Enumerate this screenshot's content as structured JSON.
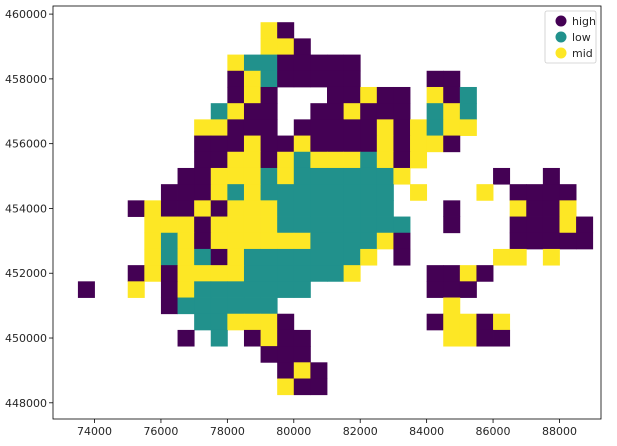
{
  "chart_data": {
    "type": "heatmap",
    "title": "",
    "xlabel": "",
    "ylabel": "",
    "xlim": [
      72750,
      89250
    ],
    "ylim": [
      447500,
      460250
    ],
    "xticks": [
      74000,
      76000,
      78000,
      80000,
      82000,
      84000,
      86000,
      88000
    ],
    "yticks": [
      448000,
      450000,
      452000,
      454000,
      456000,
      458000,
      460000
    ],
    "cell_size": 500,
    "grid": false,
    "legend_placement": "top-right",
    "categories": [
      {
        "key": "h",
        "name": "high",
        "color": "#440154"
      },
      {
        "key": "l",
        "name": "low",
        "color": "#21918c"
      },
      {
        "key": "m",
        "name": "mid",
        "color": "#fde725"
      }
    ],
    "rows": [
      {
        "y": 459500,
        "cells": [
          [
            79250,
            "m"
          ],
          [
            79750,
            "h"
          ]
        ]
      },
      {
        "y": 459000,
        "cells": [
          [
            79250,
            "m"
          ],
          [
            79750,
            "m"
          ],
          [
            80250,
            "h"
          ]
        ]
      },
      {
        "y": 458500,
        "cells": [
          [
            78250,
            "m"
          ],
          [
            78750,
            "l"
          ],
          [
            79250,
            "l"
          ],
          [
            79750,
            "h"
          ],
          [
            80250,
            "h"
          ],
          [
            80750,
            "h"
          ],
          [
            81250,
            "h"
          ],
          [
            81750,
            "h"
          ]
        ]
      },
      {
        "y": 458000,
        "cells": [
          [
            78250,
            "h"
          ],
          [
            78750,
            "m"
          ],
          [
            79250,
            "l"
          ],
          [
            79750,
            "h"
          ],
          [
            80250,
            "h"
          ],
          [
            80750,
            "h"
          ],
          [
            81250,
            "h"
          ],
          [
            81750,
            "h"
          ],
          [
            84250,
            "h"
          ],
          [
            84750,
            "h"
          ]
        ]
      },
      {
        "y": 457500,
        "cells": [
          [
            78250,
            "h"
          ],
          [
            78750,
            "m"
          ],
          [
            79250,
            "h"
          ],
          [
            81250,
            "h"
          ],
          [
            81750,
            "h"
          ],
          [
            82250,
            "m"
          ],
          [
            82750,
            "h"
          ],
          [
            83250,
            "h"
          ],
          [
            84250,
            "m"
          ],
          [
            84750,
            "h"
          ],
          [
            85250,
            "l"
          ]
        ]
      },
      {
        "y": 457000,
        "cells": [
          [
            77750,
            "l"
          ],
          [
            78250,
            "m"
          ],
          [
            78750,
            "h"
          ],
          [
            79250,
            "h"
          ],
          [
            80750,
            "h"
          ],
          [
            81250,
            "h"
          ],
          [
            81750,
            "m"
          ],
          [
            82250,
            "h"
          ],
          [
            82750,
            "h"
          ],
          [
            83250,
            "h"
          ],
          [
            84250,
            "l"
          ],
          [
            84750,
            "m"
          ],
          [
            85250,
            "l"
          ]
        ]
      },
      {
        "y": 456500,
        "cells": [
          [
            77250,
            "m"
          ],
          [
            77750,
            "m"
          ],
          [
            78250,
            "h"
          ],
          [
            78750,
            "h"
          ],
          [
            79250,
            "h"
          ],
          [
            80250,
            "h"
          ],
          [
            80750,
            "h"
          ],
          [
            81250,
            "h"
          ],
          [
            81750,
            "h"
          ],
          [
            82250,
            "h"
          ],
          [
            82750,
            "m"
          ],
          [
            83250,
            "h"
          ],
          [
            83750,
            "m"
          ],
          [
            84250,
            "l"
          ],
          [
            84750,
            "m"
          ],
          [
            85250,
            "m"
          ]
        ]
      },
      {
        "y": 456000,
        "cells": [
          [
            77250,
            "h"
          ],
          [
            77750,
            "h"
          ],
          [
            78250,
            "h"
          ],
          [
            78750,
            "m"
          ],
          [
            79250,
            "h"
          ],
          [
            79750,
            "h"
          ],
          [
            80250,
            "m"
          ],
          [
            80750,
            "h"
          ],
          [
            81250,
            "h"
          ],
          [
            81750,
            "h"
          ],
          [
            82250,
            "h"
          ],
          [
            82750,
            "m"
          ],
          [
            83250,
            "h"
          ],
          [
            83750,
            "m"
          ],
          [
            84250,
            "m"
          ],
          [
            84750,
            "h"
          ]
        ]
      },
      {
        "y": 455500,
        "cells": [
          [
            77250,
            "h"
          ],
          [
            77750,
            "h"
          ],
          [
            78250,
            "m"
          ],
          [
            78750,
            "m"
          ],
          [
            79250,
            "h"
          ],
          [
            79750,
            "m"
          ],
          [
            80250,
            "l"
          ],
          [
            80750,
            "m"
          ],
          [
            81250,
            "m"
          ],
          [
            81750,
            "m"
          ],
          [
            82250,
            "l"
          ],
          [
            82750,
            "m"
          ],
          [
            83250,
            "h"
          ],
          [
            83750,
            "m"
          ]
        ]
      },
      {
        "y": 455000,
        "cells": [
          [
            76750,
            "h"
          ],
          [
            77250,
            "h"
          ],
          [
            77750,
            "m"
          ],
          [
            78250,
            "m"
          ],
          [
            78750,
            "m"
          ],
          [
            79250,
            "l"
          ],
          [
            79750,
            "m"
          ],
          [
            80250,
            "l"
          ],
          [
            80750,
            "l"
          ],
          [
            81250,
            "l"
          ],
          [
            81750,
            "l"
          ],
          [
            82250,
            "l"
          ],
          [
            82750,
            "l"
          ],
          [
            83250,
            "m"
          ],
          [
            86250,
            "h"
          ],
          [
            87750,
            "h"
          ]
        ]
      },
      {
        "y": 454500,
        "cells": [
          [
            76250,
            "h"
          ],
          [
            76750,
            "h"
          ],
          [
            77250,
            "h"
          ],
          [
            77750,
            "m"
          ],
          [
            78250,
            "l"
          ],
          [
            78750,
            "m"
          ],
          [
            79250,
            "l"
          ],
          [
            79750,
            "l"
          ],
          [
            80250,
            "l"
          ],
          [
            80750,
            "l"
          ],
          [
            81250,
            "l"
          ],
          [
            81750,
            "l"
          ],
          [
            82250,
            "l"
          ],
          [
            82750,
            "l"
          ],
          [
            83750,
            "m"
          ],
          [
            85750,
            "m"
          ],
          [
            86750,
            "h"
          ],
          [
            87250,
            "h"
          ],
          [
            87750,
            "h"
          ],
          [
            88250,
            "h"
          ]
        ]
      },
      {
        "y": 454000,
        "cells": [
          [
            75250,
            "h"
          ],
          [
            75750,
            "m"
          ],
          [
            76250,
            "h"
          ],
          [
            76750,
            "h"
          ],
          [
            77250,
            "m"
          ],
          [
            77750,
            "h"
          ],
          [
            78250,
            "m"
          ],
          [
            78750,
            "m"
          ],
          [
            79250,
            "m"
          ],
          [
            79750,
            "l"
          ],
          [
            80250,
            "l"
          ],
          [
            80750,
            "l"
          ],
          [
            81250,
            "l"
          ],
          [
            81750,
            "l"
          ],
          [
            82250,
            "l"
          ],
          [
            82750,
            "l"
          ],
          [
            84750,
            "h"
          ],
          [
            86750,
            "m"
          ],
          [
            87250,
            "h"
          ],
          [
            87750,
            "h"
          ],
          [
            88250,
            "m"
          ]
        ]
      },
      {
        "y": 453500,
        "cells": [
          [
            75750,
            "m"
          ],
          [
            76250,
            "m"
          ],
          [
            76750,
            "m"
          ],
          [
            77250,
            "h"
          ],
          [
            77750,
            "m"
          ],
          [
            78250,
            "m"
          ],
          [
            78750,
            "m"
          ],
          [
            79250,
            "m"
          ],
          [
            79750,
            "l"
          ],
          [
            80250,
            "l"
          ],
          [
            80750,
            "l"
          ],
          [
            81250,
            "l"
          ],
          [
            81750,
            "l"
          ],
          [
            82250,
            "l"
          ],
          [
            82750,
            "l"
          ],
          [
            83250,
            "l"
          ],
          [
            84750,
            "h"
          ],
          [
            86750,
            "h"
          ],
          [
            87250,
            "h"
          ],
          [
            87750,
            "h"
          ],
          [
            88250,
            "m"
          ],
          [
            88750,
            "h"
          ]
        ]
      },
      {
        "y": 453000,
        "cells": [
          [
            75750,
            "m"
          ],
          [
            76250,
            "l"
          ],
          [
            76750,
            "m"
          ],
          [
            77250,
            "h"
          ],
          [
            77750,
            "m"
          ],
          [
            78250,
            "m"
          ],
          [
            78750,
            "m"
          ],
          [
            79250,
            "m"
          ],
          [
            79750,
            "m"
          ],
          [
            80250,
            "m"
          ],
          [
            80750,
            "l"
          ],
          [
            81250,
            "l"
          ],
          [
            81750,
            "l"
          ],
          [
            82250,
            "l"
          ],
          [
            82750,
            "m"
          ],
          [
            83250,
            "h"
          ],
          [
            86750,
            "h"
          ],
          [
            87250,
            "h"
          ],
          [
            87750,
            "h"
          ],
          [
            88250,
            "h"
          ],
          [
            88750,
            "h"
          ]
        ]
      },
      {
        "y": 452500,
        "cells": [
          [
            75750,
            "m"
          ],
          [
            76250,
            "l"
          ],
          [
            76750,
            "m"
          ],
          [
            77250,
            "l"
          ],
          [
            77750,
            "h"
          ],
          [
            78250,
            "m"
          ],
          [
            78750,
            "l"
          ],
          [
            79250,
            "l"
          ],
          [
            79750,
            "l"
          ],
          [
            80250,
            "l"
          ],
          [
            80750,
            "l"
          ],
          [
            81250,
            "l"
          ],
          [
            81750,
            "l"
          ],
          [
            82250,
            "m"
          ],
          [
            83250,
            "h"
          ],
          [
            86250,
            "m"
          ],
          [
            86750,
            "m"
          ],
          [
            87750,
            "m"
          ]
        ]
      },
      {
        "y": 452000,
        "cells": [
          [
            75250,
            "h"
          ],
          [
            75750,
            "m"
          ],
          [
            76250,
            "h"
          ],
          [
            76750,
            "m"
          ],
          [
            77250,
            "m"
          ],
          [
            77750,
            "m"
          ],
          [
            78250,
            "m"
          ],
          [
            78750,
            "l"
          ],
          [
            79250,
            "l"
          ],
          [
            79750,
            "l"
          ],
          [
            80250,
            "l"
          ],
          [
            80750,
            "l"
          ],
          [
            81250,
            "l"
          ],
          [
            81750,
            "m"
          ],
          [
            84250,
            "h"
          ],
          [
            84750,
            "h"
          ],
          [
            85250,
            "m"
          ],
          [
            85750,
            "h"
          ]
        ]
      },
      {
        "y": 451500,
        "cells": [
          [
            73750,
            "h"
          ],
          [
            75250,
            "m"
          ],
          [
            76250,
            "h"
          ],
          [
            76750,
            "m"
          ],
          [
            77250,
            "l"
          ],
          [
            77750,
            "l"
          ],
          [
            78250,
            "l"
          ],
          [
            78750,
            "l"
          ],
          [
            79250,
            "l"
          ],
          [
            79750,
            "l"
          ],
          [
            80250,
            "l"
          ],
          [
            84250,
            "h"
          ],
          [
            84750,
            "h"
          ],
          [
            85250,
            "h"
          ]
        ]
      },
      {
        "y": 451000,
        "cells": [
          [
            76250,
            "h"
          ],
          [
            76750,
            "l"
          ],
          [
            77250,
            "l"
          ],
          [
            77750,
            "l"
          ],
          [
            78250,
            "l"
          ],
          [
            78750,
            "l"
          ],
          [
            79250,
            "l"
          ],
          [
            84750,
            "m"
          ]
        ]
      },
      {
        "y": 450500,
        "cells": [
          [
            77250,
            "l"
          ],
          [
            77750,
            "l"
          ],
          [
            78250,
            "m"
          ],
          [
            78750,
            "m"
          ],
          [
            79250,
            "m"
          ],
          [
            79750,
            "h"
          ],
          [
            84250,
            "h"
          ],
          [
            84750,
            "m"
          ],
          [
            85250,
            "m"
          ],
          [
            85750,
            "h"
          ],
          [
            86250,
            "m"
          ]
        ]
      },
      {
        "y": 450000,
        "cells": [
          [
            76750,
            "h"
          ],
          [
            77750,
            "l"
          ],
          [
            78750,
            "h"
          ],
          [
            79250,
            "m"
          ],
          [
            79750,
            "h"
          ],
          [
            80250,
            "h"
          ],
          [
            84750,
            "m"
          ],
          [
            85250,
            "m"
          ],
          [
            85750,
            "h"
          ],
          [
            86250,
            "h"
          ]
        ]
      },
      {
        "y": 449500,
        "cells": [
          [
            79250,
            "h"
          ],
          [
            79750,
            "h"
          ],
          [
            80250,
            "h"
          ]
        ]
      },
      {
        "y": 449000,
        "cells": [
          [
            79750,
            "h"
          ],
          [
            80250,
            "m"
          ],
          [
            80750,
            "h"
          ]
        ]
      },
      {
        "y": 448500,
        "cells": [
          [
            79750,
            "m"
          ],
          [
            80250,
            "h"
          ],
          [
            80750,
            "h"
          ]
        ]
      }
    ]
  }
}
